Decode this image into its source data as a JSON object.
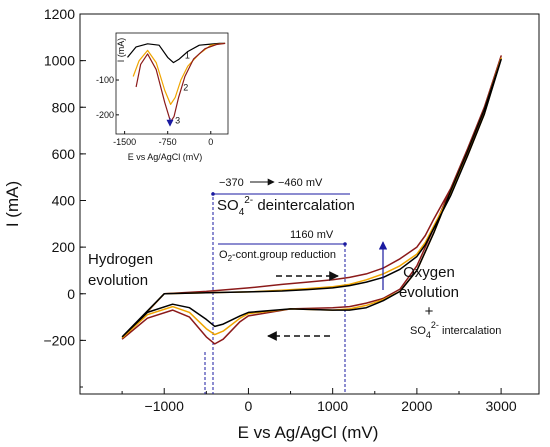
{
  "chart_data": [
    {
      "type": "line",
      "xlabel": "E vs Ag/AgCl (mV)",
      "ylabel": "I (mA)",
      "xlim": [
        -2000,
        3450
      ],
      "ylim": [
        -430,
        1200
      ],
      "xticks": [
        "−1000",
        "0",
        "1000",
        "2000",
        "3000"
      ],
      "xtick_values": [
        -1000,
        0,
        1000,
        2000,
        3000
      ],
      "yticks": [
        "1200",
        "1000",
        "800",
        "600",
        "400",
        "200",
        "0",
        "−200"
      ],
      "ytick_values": [
        1200,
        1000,
        800,
        600,
        400,
        200,
        0,
        -200
      ],
      "grid": false,
      "series": [
        {
          "color": "#8b1a1a",
          "x": [
            -1500,
            -1200,
            -900,
            -700,
            -500,
            -400,
            -300,
            -100,
            0,
            500,
            1000,
            1200,
            1400,
            1600,
            1800,
            2000,
            2200,
            2400,
            2600,
            2800,
            3000,
            2800,
            2600,
            2400,
            2200,
            2100,
            2000,
            1800,
            1600,
            1400,
            1200,
            1000,
            700,
            400,
            0,
            -500,
            -1000,
            -1500
          ],
          "y": [
            -195,
            -105,
            -70,
            -100,
            -185,
            -215,
            -195,
            -120,
            -95,
            -65,
            -60,
            -55,
            -40,
            -20,
            20,
            120,
            280,
            450,
            620,
            800,
            1020,
            780,
            600,
            450,
            320,
            250,
            200,
            150,
            110,
            85,
            70,
            60,
            50,
            40,
            25,
            10,
            0,
            -195
          ]
        },
        {
          "color": "#f0a500",
          "x": [
            -1500,
            -1200,
            -900,
            -700,
            -500,
            -400,
            -300,
            -100,
            0,
            500,
            1000,
            1200,
            1400,
            1600,
            1800,
            2000,
            2200,
            2400,
            2600,
            2800,
            3000,
            2800,
            2600,
            2400,
            2200,
            2100,
            2000,
            1800,
            1600,
            1400,
            1200,
            1000,
            700,
            400,
            0,
            -500,
            -1000,
            -1500
          ],
          "y": [
            -190,
            -90,
            -55,
            -80,
            -150,
            -175,
            -160,
            -105,
            -85,
            -65,
            -70,
            -65,
            -50,
            -25,
            10,
            100,
            260,
            440,
            610,
            790,
            1010,
            770,
            590,
            430,
            290,
            220,
            170,
            120,
            85,
            60,
            40,
            30,
            22,
            15,
            8,
            4,
            0,
            -190
          ]
        },
        {
          "color": "#000000",
          "x": [
            -1500,
            -1200,
            -900,
            -700,
            -500,
            -400,
            -300,
            -100,
            0,
            500,
            1000,
            1200,
            1400,
            1600,
            1800,
            2000,
            2200,
            2400,
            2600,
            2800,
            3000,
            2800,
            2600,
            2400,
            2200,
            2100,
            2000,
            1800,
            1600,
            1400,
            1200,
            1000,
            700,
            400,
            0,
            -500,
            -1000,
            -1500
          ],
          "y": [
            -185,
            -80,
            -45,
            -60,
            -110,
            -140,
            -130,
            -95,
            -80,
            -65,
            -70,
            -70,
            -60,
            -30,
            10,
            100,
            260,
            440,
            610,
            790,
            1005,
            770,
            590,
            420,
            280,
            210,
            160,
            105,
            70,
            50,
            35,
            25,
            18,
            12,
            8,
            4,
            0,
            -185
          ]
        }
      ]
    },
    {
      "type": "line",
      "xlabel": "E vs Ag/AgCl (mV)",
      "ylabel": "I (mA)",
      "xlim": [
        -1650,
        300
      ],
      "ylim": [
        -255,
        35
      ],
      "xticks": [
        "-1500",
        "-750",
        "0"
      ],
      "xtick_values": [
        -1500,
        -750,
        0
      ],
      "yticks": [
        "-100",
        "-200"
      ],
      "ytick_values": [
        -100,
        -200
      ],
      "series": [
        {
          "name": "1",
          "color": "#000000",
          "x": [
            -1450,
            -1300,
            -1100,
            -900,
            -750,
            -650,
            -550,
            -400,
            -200,
            0,
            150,
            250
          ],
          "y": [
            -35,
            -5,
            4,
            0,
            -35,
            -50,
            -40,
            -18,
            0,
            3,
            5,
            5
          ]
        },
        {
          "name": "2",
          "color": "#f0a500",
          "x": [
            -1350,
            -1250,
            -1100,
            -950,
            -800,
            -700,
            -620,
            -520,
            -400,
            -200,
            0,
            150,
            250
          ],
          "y": [
            -90,
            -45,
            -15,
            -50,
            -130,
            -170,
            -150,
            -100,
            -60,
            -25,
            0,
            4,
            5
          ]
        },
        {
          "name": "3",
          "color": "#8b1a1a",
          "x": [
            -1300,
            -1220,
            -1100,
            -950,
            -800,
            -700,
            -640,
            -560,
            -450,
            -300,
            -100,
            100,
            250
          ],
          "y": [
            -120,
            -55,
            -25,
            -70,
            -165,
            -220,
            -205,
            -150,
            -90,
            -40,
            -10,
            2,
            5
          ]
        }
      ]
    }
  ],
  "annotations": {
    "hydrogen": [
      "Hydrogen",
      "evolution"
    ],
    "oxygen": [
      "Oxygen",
      "evolution",
      "+"
    ],
    "so4_intercalation": {
      "prefix": "SO",
      "sub": "4",
      "sup": "2-",
      "suffix": " intercalation"
    },
    "potential_shift": {
      "from": "−370",
      "to": "−460 mV"
    },
    "so4_deintercalation": {
      "prefix": "SO",
      "sub": "4",
      "sup": "2-",
      "suffix": " deintercalation"
    },
    "o2_potential": "1160 mV",
    "o2_reduction": {
      "prefix": "O",
      "sub": "2",
      "suffix": "-cont.group reduction"
    }
  },
  "colors": {
    "curve_1": "#000000",
    "curve_2": "#f0a500",
    "curve_3": "#8b1a1a",
    "guide_line": "#1a1aa0",
    "scan_arrow": "#1a1aa0"
  }
}
